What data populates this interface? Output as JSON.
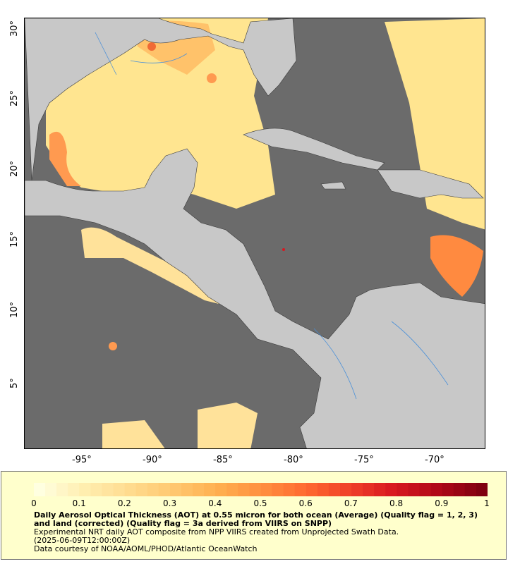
{
  "map": {
    "lon_labels": [
      "-95°",
      "-90°",
      "-85°",
      "-80°",
      "-75°",
      "-70°"
    ],
    "lat_labels": [
      "30°",
      "25°",
      "20°",
      "15°",
      "10°",
      "5°"
    ],
    "colors": {
      "ocean": "#6b6b6b",
      "land": "#c8c8c8",
      "rivers": "#4a90d9",
      "borders": "#333333"
    }
  },
  "legend": {
    "scale_labels": [
      "0",
      "0.1",
      "0.2",
      "0.3",
      "0.4",
      "0.5",
      "0.6",
      "0.7",
      "0.8",
      "0.9",
      "1"
    ],
    "colorbar_stops": [
      "#ffffe0",
      "#ffeeb0",
      "#ffdc90",
      "#ffc870",
      "#ffb050",
      "#ff9040",
      "#ff6a30",
      "#f04028",
      "#d81820",
      "#b00818",
      "#800010"
    ],
    "title": "Daily Aerosol Optical Thickness (AOT) at 0.55 micron for both ocean (Average) (Quality flag = 1, 2, 3) and land (corrected) (Quality flag = 3a derived from VIIRS on SNPP)",
    "line1": "Experimental NRT daily AOT composite from NPP VIIRS created from Unprojected Swath Data.",
    "line2": "(2025-06-09T12:00:00Z)",
    "line3": "Data courtesy of NOAA/AOML/PHOD/Atlantic OceanWatch"
  }
}
